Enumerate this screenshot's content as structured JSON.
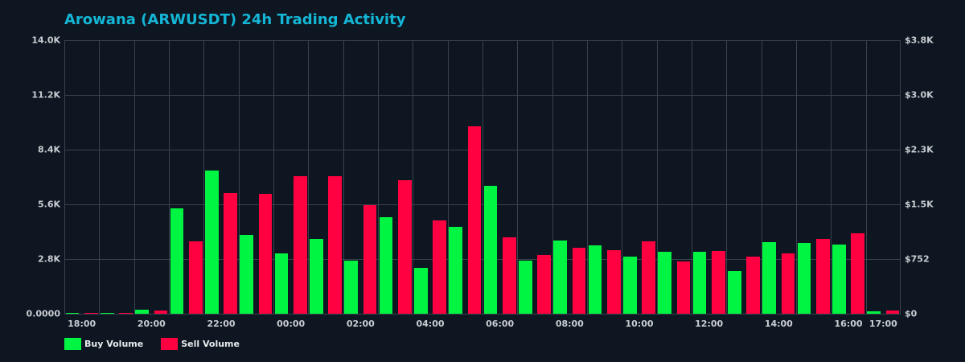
{
  "title": "Arowana (ARWUSDT) 24h Trading Activity",
  "colors": {
    "background": "#0d1621",
    "title": "#14b6d6",
    "buy": "#00f542",
    "sell": "#ff0040",
    "grid": "#3b424d",
    "tick_text": "#c9cdd2"
  },
  "legend": {
    "buy_label": "Buy Volume",
    "sell_label": "Sell Volume"
  },
  "axes": {
    "left_ticks": [
      "0.0000",
      "2.8K",
      "5.6K",
      "8.4K",
      "11.2K",
      "14.0K"
    ],
    "right_ticks": [
      "$0",
      "$752",
      "$1.5K",
      "$2.3K",
      "$3.0K",
      "$3.8K"
    ],
    "x_tick_labels": [
      {
        "index": 0,
        "label": "18:00"
      },
      {
        "index": 2,
        "label": "20:00"
      },
      {
        "index": 4,
        "label": "22:00"
      },
      {
        "index": 6,
        "label": "00:00"
      },
      {
        "index": 8,
        "label": "02:00"
      },
      {
        "index": 10,
        "label": "04:00"
      },
      {
        "index": 12,
        "label": "06:00"
      },
      {
        "index": 14,
        "label": "08:00"
      },
      {
        "index": 16,
        "label": "10:00"
      },
      {
        "index": 18,
        "label": "12:00"
      },
      {
        "index": 20,
        "label": "14:00"
      },
      {
        "index": 22,
        "label": "16:00"
      },
      {
        "index": 23,
        "label": "17:00"
      }
    ]
  },
  "chart_data": {
    "type": "bar",
    "title": "Arowana (ARWUSDT) 24h Trading Activity",
    "xlabel": "",
    "ylabel": "",
    "ylim": [
      0,
      14000
    ],
    "y2lim": [
      0,
      3760
    ],
    "grid": true,
    "legend_position": "bottom-left",
    "categories": [
      "18:00",
      "19:00",
      "20:00",
      "21:00",
      "22:00",
      "23:00",
      "00:00",
      "01:00",
      "02:00",
      "03:00",
      "04:00",
      "05:00",
      "06:00",
      "07:00",
      "08:00",
      "09:00",
      "10:00",
      "11:00",
      "12:00",
      "13:00",
      "14:00",
      "15:00",
      "16:00",
      "17:00"
    ],
    "series": [
      {
        "name": "Buy Volume",
        "values": [
          35,
          35,
          206,
          5400,
          7330,
          4040,
          3090,
          3830,
          2720,
          4940,
          2350,
          4450,
          6560,
          2730,
          3750,
          3500,
          2920,
          3170,
          3170,
          2180,
          3670,
          3620,
          3540,
          124
        ]
      },
      {
        "name": "Sell Volume",
        "values": [
          30,
          30,
          165,
          3710,
          6180,
          6140,
          7040,
          7040,
          5570,
          6840,
          4780,
          9610,
          3910,
          3010,
          3380,
          3250,
          3710,
          2680,
          3210,
          2920,
          3090,
          3830,
          4120,
          165
        ]
      }
    ]
  }
}
